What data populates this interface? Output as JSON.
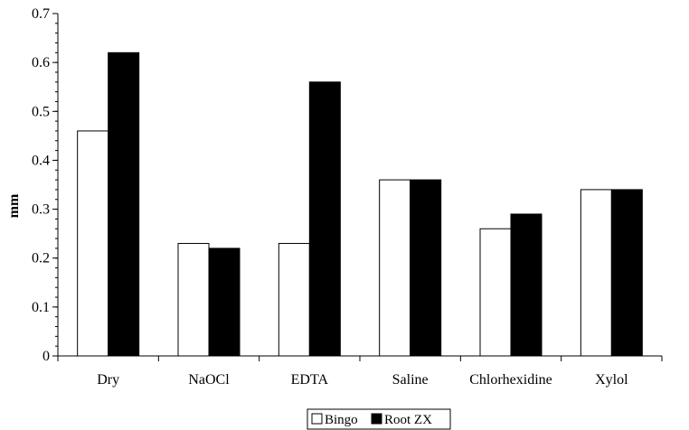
{
  "chart_data": {
    "type": "bar",
    "ylabel": "mm",
    "xlabel": "",
    "ylim": [
      0,
      0.7
    ],
    "yticks": [
      "0",
      "0.1",
      "0.2",
      "0.3",
      "0.4",
      "0.5",
      "0.6",
      "0.7"
    ],
    "grid": false,
    "legend_position": "bottom",
    "categories": [
      "Dry",
      "NaOCl",
      "EDTA",
      "Saline",
      "Chlorhexidine",
      "Xylol"
    ],
    "series": [
      {
        "name": "Bingo",
        "color": "#ffffff",
        "values": [
          0.46,
          0.23,
          0.23,
          0.36,
          0.26,
          0.34
        ]
      },
      {
        "name": "Root ZX",
        "color": "#000000",
        "values": [
          0.62,
          0.22,
          0.56,
          0.36,
          0.29,
          0.34
        ]
      }
    ]
  }
}
